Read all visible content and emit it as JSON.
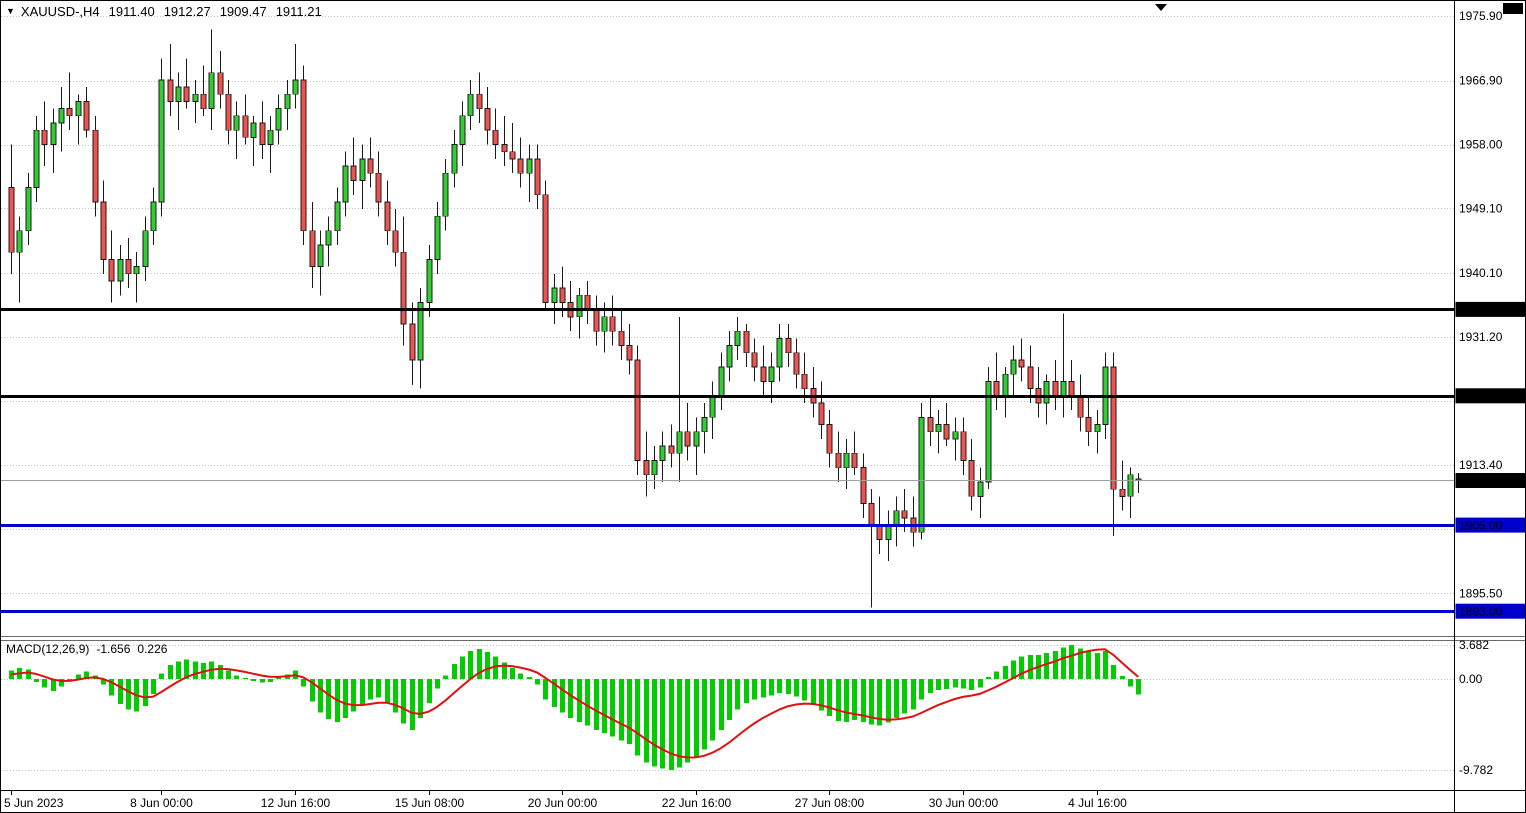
{
  "header": {
    "dropdown_icon": "▼",
    "symbol_period": "XAUUSD-,H4",
    "open": "1911.40",
    "high": "1912.27",
    "low": "1909.47",
    "close": "1911.21"
  },
  "macd_panel": {
    "name": "MACD(12,26,9)",
    "main_value": "-1.656",
    "signal_value": "0.226"
  },
  "colors": {
    "background": "#ffffff",
    "bull_candle": "#32cd32",
    "bear_candle": "#ef5350",
    "candle_outline": "#1a1a1a",
    "grid": "#c2c2c2",
    "macd_histogram": "#00cc00",
    "macd_signal": "#e01010",
    "current_price_line": "#a0a0a0",
    "axis_text": "#000000",
    "label_box_text": "#ffffff",
    "current_price_box": "#000000"
  },
  "chart_data": {
    "type": "candlestick",
    "symbol": "XAUUSD-",
    "timeframe": "H4",
    "visible_price_range": {
      "top": 1977.8,
      "bottom": 1889.7
    },
    "price_gridlines": [
      1975.9,
      1966.9,
      1958.0,
      1949.1,
      1940.1,
      1931.2,
      1922.3,
      1913.4,
      1904.5,
      1895.5
    ],
    "price_axis_labels": [
      {
        "price": 1975.9,
        "text": "1975.90"
      },
      {
        "price": 1966.9,
        "text": "1966.90"
      },
      {
        "price": 1958.0,
        "text": "1958.00"
      },
      {
        "price": 1949.1,
        "text": "1949.10"
      },
      {
        "price": 1940.1,
        "text": "1940.10"
      },
      {
        "price": 1931.2,
        "text": "1931.20"
      },
      {
        "price": 1913.4,
        "text": "1913.40"
      },
      {
        "price": 1895.5,
        "text": "1895.50"
      }
    ],
    "current_price": {
      "price": 1911.21,
      "text": "1911.21"
    },
    "levels": [
      {
        "price": 1935.03,
        "text": "1935.03",
        "color": "#000000"
      },
      {
        "price": 1923.0,
        "text": "1923.00",
        "color": "#000000"
      },
      {
        "price": 1905.0,
        "text": "1905.00",
        "color": "#0000cc"
      },
      {
        "price": 1893.0,
        "text": "1893.00",
        "color": "#0000cc"
      }
    ],
    "time_axis_labels": [
      {
        "bar": 0,
        "text": "5 Jun 2023"
      },
      {
        "bar": 18,
        "text": "8 Jun 00:00"
      },
      {
        "bar": 34,
        "text": "12 Jun 16:00"
      },
      {
        "bar": 50,
        "text": "15 Jun 08:00"
      },
      {
        "bar": 66,
        "text": "20 Jun 00:00"
      },
      {
        "bar": 82,
        "text": "22 Jun 16:00"
      },
      {
        "bar": 98,
        "text": "27 Jun 08:00"
      },
      {
        "bar": 114,
        "text": "30 Jun 00:00"
      },
      {
        "bar": 130,
        "text": "4 Jul 16:00"
      }
    ],
    "candles_ohlc": [
      [
        1952,
        1958,
        1940,
        1943
      ],
      [
        1943,
        1948,
        1936,
        1946
      ],
      [
        1946,
        1954,
        1944,
        1952
      ],
      [
        1952,
        1962,
        1950,
        1960
      ],
      [
        1960,
        1964,
        1955,
        1958
      ],
      [
        1958,
        1963,
        1954,
        1961
      ],
      [
        1961,
        1966,
        1957,
        1963
      ],
      [
        1963,
        1968,
        1960,
        1962
      ],
      [
        1962,
        1965,
        1958,
        1964
      ],
      [
        1964,
        1966,
        1959,
        1960
      ],
      [
        1960,
        1962,
        1948,
        1950
      ],
      [
        1950,
        1953,
        1940,
        1942
      ],
      [
        1942,
        1946,
        1936,
        1939
      ],
      [
        1939,
        1944,
        1937,
        1942
      ],
      [
        1942,
        1945,
        1938,
        1940
      ],
      [
        1940,
        1943,
        1936,
        1941
      ],
      [
        1941,
        1948,
        1939,
        1946
      ],
      [
        1946,
        1952,
        1944,
        1950
      ],
      [
        1950,
        1970,
        1948,
        1967
      ],
      [
        1967,
        1972,
        1962,
        1964
      ],
      [
        1964,
        1968,
        1960,
        1966
      ],
      [
        1966,
        1970,
        1963,
        1964
      ],
      [
        1964,
        1967,
        1961,
        1965
      ],
      [
        1965,
        1969,
        1962,
        1963
      ],
      [
        1963,
        1974,
        1960,
        1968
      ],
      [
        1968,
        1971,
        1963,
        1965
      ],
      [
        1965,
        1967,
        1958,
        1960
      ],
      [
        1960,
        1964,
        1956,
        1962
      ],
      [
        1962,
        1965,
        1958,
        1959
      ],
      [
        1959,
        1962,
        1955,
        1961
      ],
      [
        1961,
        1964,
        1956,
        1958
      ],
      [
        1958,
        1962,
        1954,
        1960
      ],
      [
        1960,
        1965,
        1958,
        1963
      ],
      [
        1963,
        1967,
        1960,
        1965
      ],
      [
        1965,
        1972,
        1963,
        1967
      ],
      [
        1967,
        1969,
        1944,
        1946
      ],
      [
        1946,
        1950,
        1938,
        1941
      ],
      [
        1941,
        1946,
        1937,
        1944
      ],
      [
        1944,
        1948,
        1941,
        1946
      ],
      [
        1946,
        1952,
        1944,
        1950
      ],
      [
        1950,
        1957,
        1948,
        1955
      ],
      [
        1955,
        1959,
        1951,
        1953
      ],
      [
        1953,
        1958,
        1949,
        1956
      ],
      [
        1956,
        1959,
        1952,
        1954
      ],
      [
        1954,
        1957,
        1948,
        1950
      ],
      [
        1950,
        1953,
        1944,
        1946
      ],
      [
        1946,
        1949,
        1941,
        1943
      ],
      [
        1943,
        1948,
        1930,
        1933
      ],
      [
        1933,
        1936,
        1924.5,
        1928
      ],
      [
        1928,
        1938,
        1924,
        1936
      ],
      [
        1936,
        1944,
        1934,
        1942
      ],
      [
        1942,
        1950,
        1940,
        1948
      ],
      [
        1948,
        1956,
        1946,
        1954
      ],
      [
        1954,
        1960,
        1952,
        1958
      ],
      [
        1958,
        1964,
        1955,
        1962
      ],
      [
        1962,
        1967,
        1960,
        1965
      ],
      [
        1965,
        1968,
        1961,
        1963
      ],
      [
        1963,
        1966,
        1958,
        1960
      ],
      [
        1960,
        1963,
        1956,
        1958
      ],
      [
        1958,
        1962,
        1955,
        1957
      ],
      [
        1957,
        1961,
        1954,
        1956
      ],
      [
        1956,
        1959,
        1952,
        1954
      ],
      [
        1954,
        1958,
        1950,
        1956
      ],
      [
        1956,
        1958,
        1949,
        1951
      ],
      [
        1951,
        1953,
        1935,
        1936
      ],
      [
        1936,
        1940,
        1933,
        1938
      ],
      [
        1938,
        1941,
        1934,
        1936
      ],
      [
        1936,
        1939,
        1932,
        1934
      ],
      [
        1934,
        1938,
        1931,
        1937
      ],
      [
        1937,
        1939,
        1933,
        1935
      ],
      [
        1935,
        1937,
        1930,
        1932
      ],
      [
        1932,
        1936,
        1929,
        1934
      ],
      [
        1934,
        1937,
        1930,
        1932
      ],
      [
        1932,
        1935,
        1928,
        1930
      ],
      [
        1930,
        1933,
        1926,
        1928
      ],
      [
        1928,
        1930,
        1912,
        1914
      ],
      [
        1914,
        1918,
        1909,
        1912
      ],
      [
        1912,
        1916,
        1910,
        1914
      ],
      [
        1914,
        1918,
        1911,
        1916
      ],
      [
        1916,
        1919,
        1913,
        1915
      ],
      [
        1915,
        1934,
        1911,
        1918
      ],
      [
        1918,
        1922,
        1914,
        1916
      ],
      [
        1916,
        1920,
        1912,
        1918
      ],
      [
        1918,
        1922,
        1915,
        1920
      ],
      [
        1920,
        1925,
        1917,
        1923
      ],
      [
        1923,
        1929,
        1921,
        1927
      ],
      [
        1927,
        1932,
        1925,
        1930
      ],
      [
        1930,
        1934,
        1928,
        1932
      ],
      [
        1932,
        1933,
        1927,
        1929
      ],
      [
        1929,
        1931,
        1925,
        1927
      ],
      [
        1927,
        1930,
        1923,
        1925
      ],
      [
        1925,
        1929,
        1922,
        1927
      ],
      [
        1927,
        1933,
        1925,
        1931
      ],
      [
        1931,
        1933,
        1927,
        1929
      ],
      [
        1929,
        1931,
        1924,
        1926
      ],
      [
        1926,
        1929,
        1922,
        1924
      ],
      [
        1924,
        1927,
        1920,
        1922
      ],
      [
        1922,
        1925,
        1917,
        1919
      ],
      [
        1919,
        1921,
        1913,
        1915
      ],
      [
        1915,
        1918,
        1911,
        1913
      ],
      [
        1913,
        1917,
        1910,
        1915
      ],
      [
        1915,
        1918,
        1912,
        1913
      ],
      [
        1913,
        1915,
        1906,
        1908
      ],
      [
        1908,
        1910,
        1893.5,
        1905
      ],
      [
        1905,
        1909,
        1901,
        1903
      ],
      [
        1903,
        1907,
        1900,
        1905
      ],
      [
        1905,
        1909,
        1902,
        1907
      ],
      [
        1907,
        1910,
        1904,
        1906
      ],
      [
        1906,
        1909,
        1902,
        1904
      ],
      [
        1904,
        1922,
        1903,
        1920
      ],
      [
        1920,
        1923,
        1916,
        1918
      ],
      [
        1918,
        1921,
        1915,
        1919
      ],
      [
        1919,
        1922,
        1916,
        1917
      ],
      [
        1917,
        1920,
        1914,
        1918
      ],
      [
        1918,
        1920,
        1912,
        1914
      ],
      [
        1914,
        1917,
        1907,
        1909
      ],
      [
        1909,
        1913,
        1906,
        1911
      ],
      [
        1911,
        1927,
        1910,
        1925
      ],
      [
        1925,
        1929,
        1921,
        1923
      ],
      [
        1923,
        1927,
        1920,
        1926
      ],
      [
        1926,
        1930,
        1923,
        1928
      ],
      [
        1928,
        1931,
        1925,
        1927
      ],
      [
        1927,
        1930,
        1922,
        1924
      ],
      [
        1924,
        1927,
        1920,
        1922
      ],
      [
        1922,
        1926,
        1919,
        1925
      ],
      [
        1925,
        1928,
        1921,
        1923
      ],
      [
        1923,
        1934.5,
        1920,
        1925
      ],
      [
        1925,
        1928,
        1921,
        1923
      ],
      [
        1923,
        1926,
        1918,
        1920
      ],
      [
        1920,
        1923,
        1916,
        1918
      ],
      [
        1918,
        1921,
        1915,
        1919
      ],
      [
        1919,
        1929,
        1917,
        1927
      ],
      [
        1927,
        1929,
        1903.5,
        1910
      ],
      [
        1910,
        1914,
        1907,
        1909
      ],
      [
        1909,
        1913,
        1906,
        1912
      ],
      [
        1911.4,
        1912.27,
        1909.47,
        1911.21
      ]
    ],
    "macd": {
      "type": "bar+line",
      "params": "12,26,9",
      "axis_labels": [
        {
          "value": 3.682,
          "text": "3.682"
        },
        {
          "value": 0,
          "text": "0.00"
        },
        {
          "value": -9.782,
          "text": "-9.782"
        }
      ],
      "histogram": [
        0.9,
        1.2,
        1.0,
        -0.3,
        -0.9,
        -1.3,
        -0.8,
        -0.1,
        0.5,
        0.8,
        0.4,
        -0.6,
        -1.8,
        -2.7,
        -3.3,
        -3.5,
        -2.9,
        -1.6,
        0.6,
        1.5,
        1.9,
        2.1,
        1.9,
        1.7,
        1.9,
        1.5,
        0.9,
        0.4,
        0.1,
        -0.2,
        -0.4,
        -0.3,
        0.2,
        0.5,
        0.9,
        -0.8,
        -2.4,
        -3.6,
        -4.3,
        -4.6,
        -4.2,
        -3.5,
        -2.8,
        -2.2,
        -2.0,
        -2.6,
        -3.6,
        -4.8,
        -5.5,
        -4.2,
        -2.6,
        -1.0,
        0.4,
        1.6,
        2.4,
        3.0,
        3.2,
        2.9,
        2.4,
        1.8,
        1.2,
        0.6,
        0.2,
        -0.6,
        -2.2,
        -3.0,
        -3.6,
        -4.2,
        -4.6,
        -5.0,
        -5.5,
        -5.8,
        -6.2,
        -6.6,
        -7.0,
        -8.2,
        -9.0,
        -9.4,
        -9.6,
        -9.782,
        -9.5,
        -9.0,
        -8.4,
        -7.6,
        -6.6,
        -5.5,
        -4.4,
        -3.3,
        -2.6,
        -2.2,
        -2.0,
        -1.8,
        -1.5,
        -1.6,
        -1.9,
        -2.3,
        -2.8,
        -3.4,
        -4.0,
        -4.5,
        -4.6,
        -4.4,
        -4.6,
        -4.9,
        -5.0,
        -4.7,
        -4.2,
        -3.7,
        -3.3,
        -2.2,
        -1.5,
        -1.2,
        -1.1,
        -0.9,
        -1.0,
        -1.2,
        -0.9,
        0.2,
        0.8,
        1.4,
        2.0,
        2.4,
        2.6,
        2.6,
        2.8,
        3.0,
        3.4,
        3.682,
        3.3,
        3.0,
        2.8,
        3.0,
        1.5,
        0.3,
        -0.8,
        -1.656
      ],
      "signal": [
        0.5,
        0.6,
        0.7,
        0.55,
        0.26,
        -0.05,
        -0.22,
        -0.2,
        -0.06,
        0.11,
        0.17,
        0.02,
        -0.34,
        -0.81,
        -1.31,
        -1.75,
        -1.98,
        -1.9,
        -1.4,
        -0.82,
        -0.28,
        0.2,
        0.54,
        0.77,
        1.0,
        1.1,
        1.06,
        0.93,
        0.76,
        0.57,
        0.38,
        0.24,
        0.23,
        0.29,
        0.41,
        0.17,
        -0.35,
        -1.0,
        -1.66,
        -2.25,
        -2.64,
        -2.81,
        -2.81,
        -2.69,
        -2.55,
        -2.56,
        -2.77,
        -3.17,
        -3.64,
        -3.75,
        -3.52,
        -3.02,
        -2.33,
        -1.55,
        -0.76,
        -0.01,
        0.63,
        1.08,
        1.35,
        1.44,
        1.39,
        1.23,
        1.02,
        0.7,
        0.12,
        -0.5,
        -1.12,
        -1.74,
        -2.31,
        -2.85,
        -3.38,
        -3.86,
        -4.33,
        -4.78,
        -5.23,
        -5.82,
        -6.46,
        -7.05,
        -7.56,
        -8.0,
        -8.3,
        -8.44,
        -8.43,
        -8.26,
        -7.93,
        -7.44,
        -6.84,
        -6.13,
        -5.42,
        -4.78,
        -4.22,
        -3.74,
        -3.29,
        -2.95,
        -2.74,
        -2.65,
        -2.68,
        -2.82,
        -3.06,
        -3.35,
        -3.6,
        -3.76,
        -3.93,
        -4.12,
        -4.3,
        -4.38,
        -4.34,
        -4.21,
        -4.03,
        -3.66,
        -3.23,
        -2.82,
        -2.48,
        -2.16,
        -1.93,
        -1.78,
        -1.6,
        -1.24,
        -0.83,
        -0.38,
        0.1,
        0.56,
        0.97,
        1.3,
        1.6,
        1.88,
        2.24,
        2.49,
        2.8,
        3.0,
        3.15,
        3.2,
        2.6,
        1.8,
        1.0,
        0.226
      ]
    }
  }
}
